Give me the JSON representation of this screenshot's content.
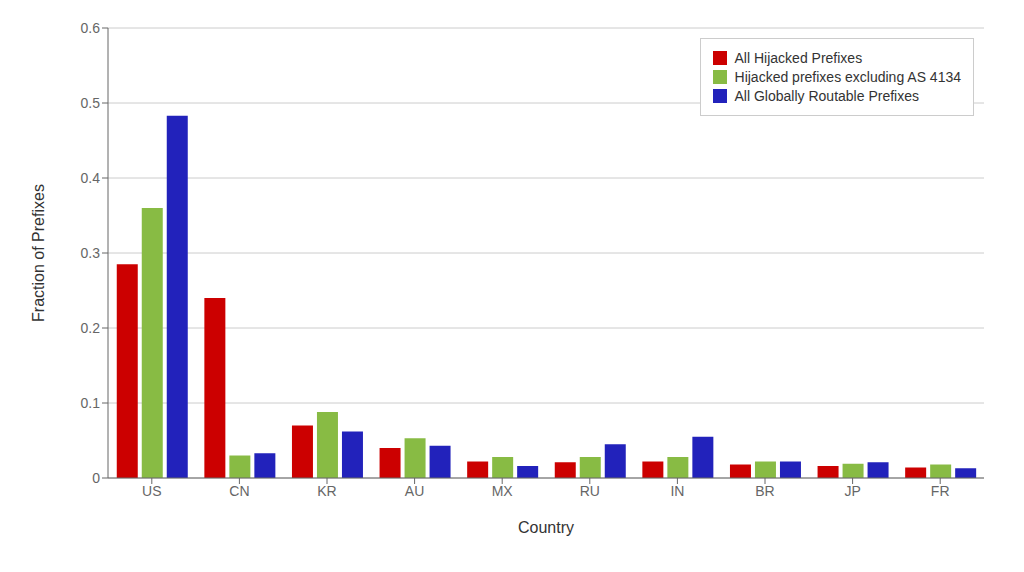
{
  "chart_data": {
    "type": "bar",
    "xlabel": "Country",
    "ylabel": "Fraction of Prefixes",
    "categories": [
      "US",
      "CN",
      "KR",
      "AU",
      "MX",
      "RU",
      "IN",
      "BR",
      "JP",
      "FR"
    ],
    "series": [
      {
        "name": "All Hijacked Prefixes",
        "color": "#cc0000",
        "values": [
          0.285,
          0.24,
          0.07,
          0.04,
          0.022,
          0.021,
          0.022,
          0.018,
          0.016,
          0.014
        ]
      },
      {
        "name": "Hijacked prefixes excluding AS 4134",
        "color": "#88bb44",
        "values": [
          0.36,
          0.03,
          0.088,
          0.053,
          0.028,
          0.028,
          0.028,
          0.022,
          0.019,
          0.018
        ]
      },
      {
        "name": "All Globally Routable Prefixes",
        "color": "#2222bb",
        "values": [
          0.483,
          0.033,
          0.062,
          0.043,
          0.016,
          0.045,
          0.055,
          0.022,
          0.021,
          0.013
        ]
      }
    ],
    "ylim": [
      0,
      0.6
    ],
    "yticks": [
      0,
      0.1,
      0.2,
      0.3,
      0.4,
      0.5,
      0.6
    ],
    "grid": true,
    "legend": "upper right"
  }
}
